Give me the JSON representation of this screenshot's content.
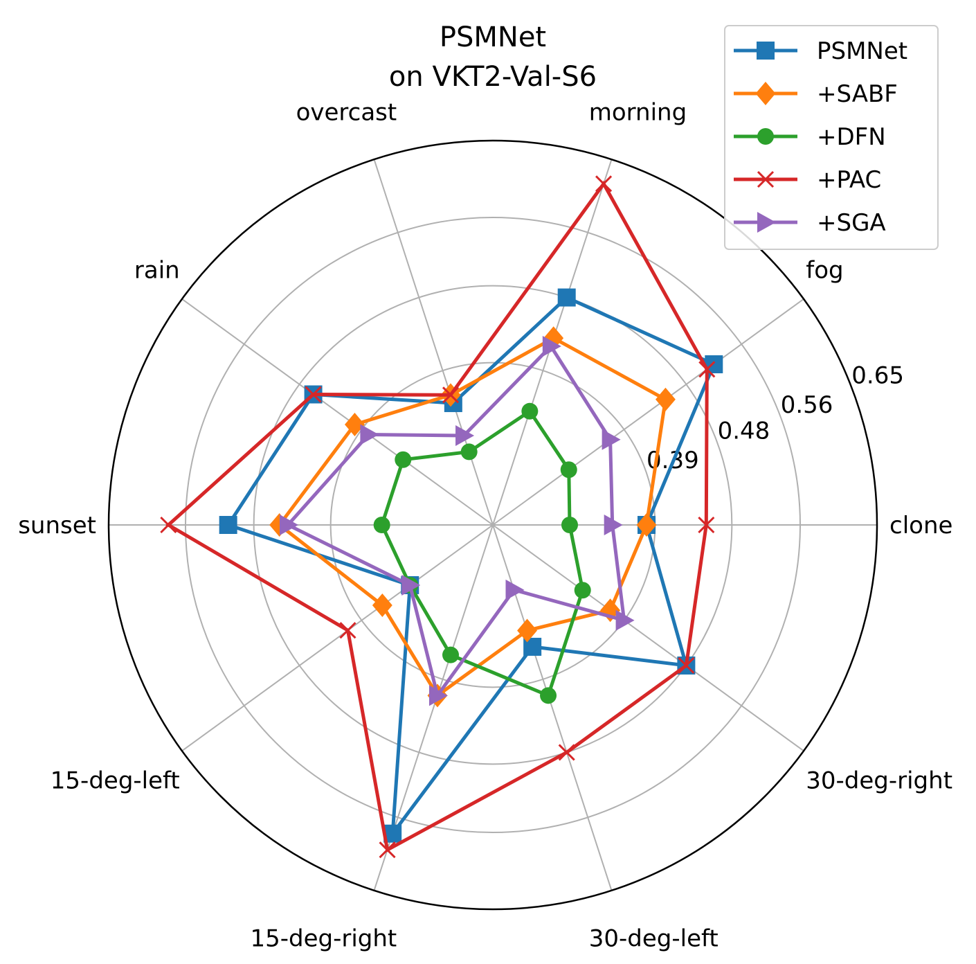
{
  "chart_data": {
    "type": "radar",
    "title_lines": [
      "PSMNet",
      "on VKT2-Val-S6"
    ],
    "categories": [
      "clone",
      "fog",
      "morning",
      "overcast",
      "rain",
      "sunset",
      "15-deg-left",
      "15-deg-right",
      "30-deg-left",
      "30-deg-right"
    ],
    "radial_ticks": [
      0.39,
      0.48,
      0.56,
      0.65
    ],
    "radial_tick_labels": [
      "0.39",
      "0.48",
      "0.56",
      "0.65"
    ],
    "rlim": [
      0.2,
      0.65
    ],
    "legend_position": "top-right",
    "grid": true,
    "series": [
      {
        "name": "PSMNet",
        "color": "#1f77b4",
        "marker": "square",
        "values": [
          0.38,
          0.52,
          0.48,
          0.35,
          0.46,
          0.51,
          0.32,
          0.58,
          0.35,
          0.48
        ]
      },
      {
        "name": "+SABF",
        "color": "#ff7f0e",
        "marker": "diamond",
        "values": [
          0.38,
          0.45,
          0.43,
          0.36,
          0.4,
          0.45,
          0.36,
          0.41,
          0.33,
          0.37
        ]
      },
      {
        "name": "+DFN",
        "color": "#2ca02c",
        "marker": "circle",
        "values": [
          0.29,
          0.31,
          0.34,
          0.29,
          0.33,
          0.33,
          0.32,
          0.36,
          0.41,
          0.33
        ]
      },
      {
        "name": "+PAC",
        "color": "#d62728",
        "marker": "x",
        "values": [
          0.45,
          0.51,
          0.62,
          0.36,
          0.46,
          0.58,
          0.41,
          0.6,
          0.48,
          0.48
        ]
      },
      {
        "name": "+SGA",
        "color": "#9467bd",
        "marker": "triangle-right",
        "values": [
          0.34,
          0.37,
          0.42,
          0.31,
          0.38,
          0.44,
          0.32,
          0.41,
          0.28,
          0.39
        ]
      }
    ]
  }
}
